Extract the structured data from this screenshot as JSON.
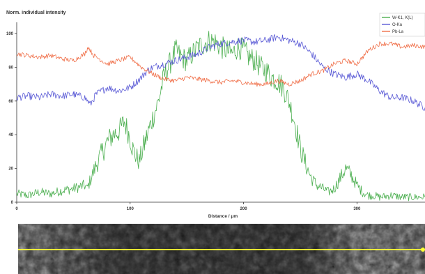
{
  "chart_data": {
    "type": "line",
    "title": "Norm. individual intensity",
    "xlabel": "Distance / μm",
    "ylabel": "",
    "xlim": [
      0,
      360
    ],
    "ylim": [
      0,
      105
    ],
    "xticks": [
      0,
      100,
      200,
      300
    ],
    "yticks": [
      0,
      20,
      40,
      60,
      80,
      100
    ],
    "grid": false,
    "legend": "top-right",
    "series": [
      {
        "name": "W-K1, K(L)",
        "color": "#4caf50",
        "x": [
          0,
          10,
          20,
          30,
          40,
          50,
          60,
          62,
          70,
          80,
          85,
          90,
          95,
          100,
          103,
          108,
          112,
          118,
          125,
          130,
          135,
          140,
          145,
          150,
          155,
          160,
          165,
          170,
          175,
          180,
          185,
          190,
          195,
          200,
          205,
          210,
          215,
          220,
          225,
          230,
          235,
          240,
          245,
          250,
          255,
          260,
          265,
          270,
          275,
          280,
          285,
          290,
          295,
          300,
          305,
          310,
          315,
          320,
          330,
          340,
          350,
          360
        ],
        "values": [
          5,
          4,
          6,
          5,
          7,
          8,
          10,
          8,
          22,
          36,
          40,
          42,
          48,
          38,
          30,
          24,
          33,
          46,
          60,
          75,
          82,
          90,
          86,
          84,
          88,
          92,
          94,
          96,
          95,
          92,
          90,
          88,
          92,
          90,
          86,
          84,
          80,
          78,
          74,
          72,
          68,
          60,
          48,
          32,
          22,
          14,
          10,
          8,
          6,
          8,
          14,
          20,
          16,
          10,
          6,
          4,
          4,
          3,
          4,
          3,
          3,
          3
        ]
      },
      {
        "name": "O-Ka",
        "color": "#5b5bd6",
        "x": [
          0,
          10,
          20,
          30,
          40,
          50,
          60,
          65,
          70,
          80,
          90,
          100,
          110,
          115,
          120,
          130,
          140,
          150,
          160,
          170,
          180,
          190,
          200,
          210,
          220,
          230,
          240,
          250,
          260,
          270,
          280,
          290,
          300,
          310,
          320,
          330,
          340,
          350,
          360
        ],
        "values": [
          62,
          63,
          62,
          64,
          63,
          64,
          62,
          58,
          64,
          68,
          66,
          68,
          74,
          78,
          80,
          82,
          84,
          86,
          88,
          92,
          94,
          95,
          96,
          95,
          96,
          98,
          96,
          94,
          88,
          80,
          76,
          74,
          76,
          72,
          66,
          62,
          62,
          60,
          56
        ]
      },
      {
        "name": "Pb-La",
        "color": "#f0704a",
        "x": [
          0,
          10,
          20,
          30,
          40,
          50,
          60,
          63,
          68,
          75,
          80,
          90,
          100,
          110,
          120,
          130,
          140,
          150,
          160,
          170,
          180,
          190,
          200,
          210,
          220,
          230,
          240,
          250,
          260,
          270,
          280,
          290,
          300,
          305,
          310,
          320,
          330,
          340,
          350,
          360
        ],
        "values": [
          88,
          87,
          86,
          87,
          85,
          84,
          88,
          92,
          87,
          84,
          82,
          84,
          86,
          80,
          76,
          73,
          72,
          74,
          73,
          72,
          71,
          72,
          71,
          70,
          70,
          72,
          70,
          72,
          76,
          78,
          82,
          84,
          82,
          86,
          90,
          94,
          94,
          92,
          93,
          92
        ]
      }
    ]
  },
  "image_strip": {
    "description_color": "#ffff33"
  }
}
